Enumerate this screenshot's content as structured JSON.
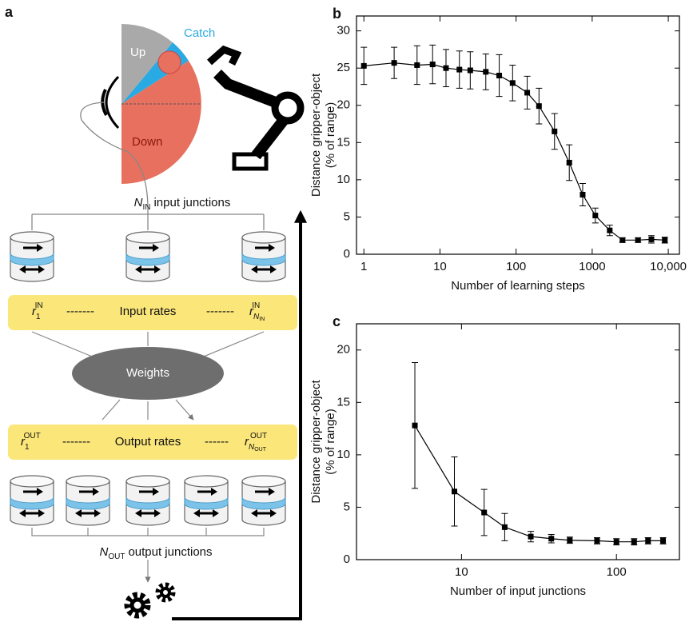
{
  "diagram": {
    "panel": "a",
    "sectors": {
      "up": "Up",
      "catch": "Catch",
      "down": "Down"
    },
    "input_junctions": {
      "symbol": "N",
      "sub": "IN",
      "text": "input junctions"
    },
    "input_rates": {
      "label": "Input rates",
      "first": {
        "base": "r",
        "sub": "1",
        "sup": "IN"
      },
      "last": {
        "base": "r",
        "sub": "N",
        "sub2": "IN",
        "sup": "IN"
      }
    },
    "weights": "Weights",
    "output_rates": {
      "label": "Output rates",
      "first": {
        "base": "r",
        "sub": "1",
        "sup": "OUT"
      },
      "last": {
        "base": "r",
        "sub": "N",
        "sub2": "OUT",
        "sup": "OUT"
      }
    },
    "output_junctions": {
      "symbol": "N",
      "sub": "OUT",
      "text": "output junctions"
    }
  },
  "chart_data": [
    {
      "type": "line",
      "panel": "b",
      "xlabel": "Number of learning steps",
      "ylabel": [
        "Distance gripper-object",
        "(% of range)"
      ],
      "log_x": true,
      "xlim": [
        0.8,
        14000
      ],
      "ylim": [
        0,
        32
      ],
      "xticks": [
        1,
        10,
        100,
        1000,
        {
          "value": 10000,
          "label": "10,000"
        }
      ],
      "yticks": [
        0,
        5,
        10,
        15,
        20,
        25,
        30
      ],
      "x": [
        1,
        2.5,
        5,
        8,
        12,
        18,
        25,
        40,
        60,
        90,
        140,
        200,
        320,
        500,
        750,
        1100,
        1700,
        2500,
        4000,
        6000,
        9000
      ],
      "series": [
        {
          "color": "#000000",
          "values": [
            25.3,
            25.7,
            25.4,
            25.5,
            25.0,
            24.8,
            24.7,
            24.5,
            24.0,
            23.0,
            21.7,
            19.9,
            16.5,
            12.3,
            8.0,
            5.2,
            3.2,
            1.9,
            1.9,
            2.0,
            1.9
          ],
          "errors": [
            2.5,
            2.1,
            2.6,
            2.6,
            2.5,
            2.5,
            2.5,
            2.4,
            2.8,
            2.4,
            2.2,
            2.4,
            2.4,
            2.4,
            1.5,
            1.0,
            0.7,
            0.3,
            0.3,
            0.5,
            0.4
          ]
        }
      ]
    },
    {
      "type": "line",
      "panel": "c",
      "xlabel": "Number of input junctions",
      "ylabel": [
        "Distance gripper-object",
        "(% of range)"
      ],
      "log_x": true,
      "xlim": [
        2.1,
        255
      ],
      "ylim": [
        0,
        22.5
      ],
      "xticks": [
        10,
        100
      ],
      "yticks": [
        0,
        5,
        10,
        15,
        20
      ],
      "x": [
        5,
        9,
        14,
        19,
        28,
        38,
        50,
        75,
        100,
        130,
        160,
        200
      ],
      "series": [
        {
          "color": "#000000",
          "values": [
            12.8,
            6.5,
            4.5,
            3.1,
            2.2,
            2.0,
            1.85,
            1.8,
            1.7,
            1.7,
            1.8,
            1.8
          ],
          "errors": [
            6.0,
            3.3,
            2.2,
            1.3,
            0.5,
            0.4,
            0.3,
            0.3,
            0.3,
            0.3,
            0.3,
            0.3
          ]
        }
      ]
    }
  ]
}
